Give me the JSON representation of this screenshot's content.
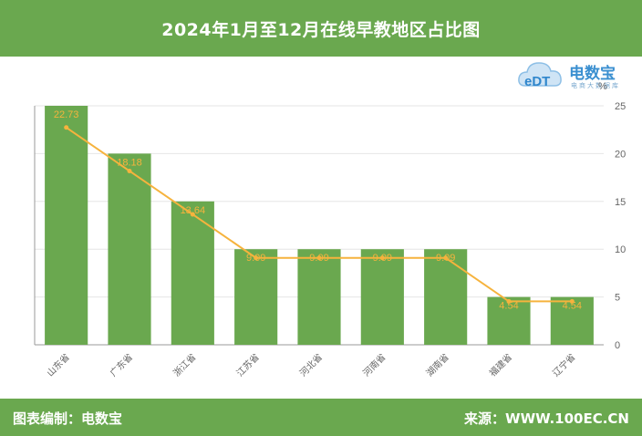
{
  "header": {
    "title": "2024年1月至12月在线早教地区占比图"
  },
  "logo": {
    "brand": "电数宝",
    "sub": "电商大数据库",
    "mark": "eDT"
  },
  "footer": {
    "left": "图表编制：电数宝",
    "right": "来源：WWW.100EC.CN"
  },
  "colors": {
    "bar": "#6aa84f",
    "line": "#f6b33d",
    "label": "#f6b33d",
    "header_bg": "#6aa84f"
  },
  "chart_data": {
    "type": "bar",
    "categories": [
      "山东省",
      "广东省",
      "浙江省",
      "江苏省",
      "河北省",
      "河南省",
      "湖南省",
      "福建省",
      "辽宁省"
    ],
    "values": [
      22.73,
      18.18,
      13.64,
      9.09,
      9.09,
      9.09,
      9.09,
      4.54,
      4.54
    ],
    "data_labels": [
      "22.73",
      "18.18",
      "13.64",
      "9.09",
      "9.09",
      "9.09",
      "9.09",
      "4.54",
      "4.54"
    ],
    "bar_heights": [
      25,
      20,
      15,
      10,
      10,
      10,
      10,
      5,
      5
    ],
    "overlay_line": true,
    "ylabel": "%",
    "ylim": [
      0,
      25
    ],
    "yticks": [
      0,
      5,
      10,
      15,
      20,
      25
    ],
    "grid": true,
    "legend": "none"
  }
}
